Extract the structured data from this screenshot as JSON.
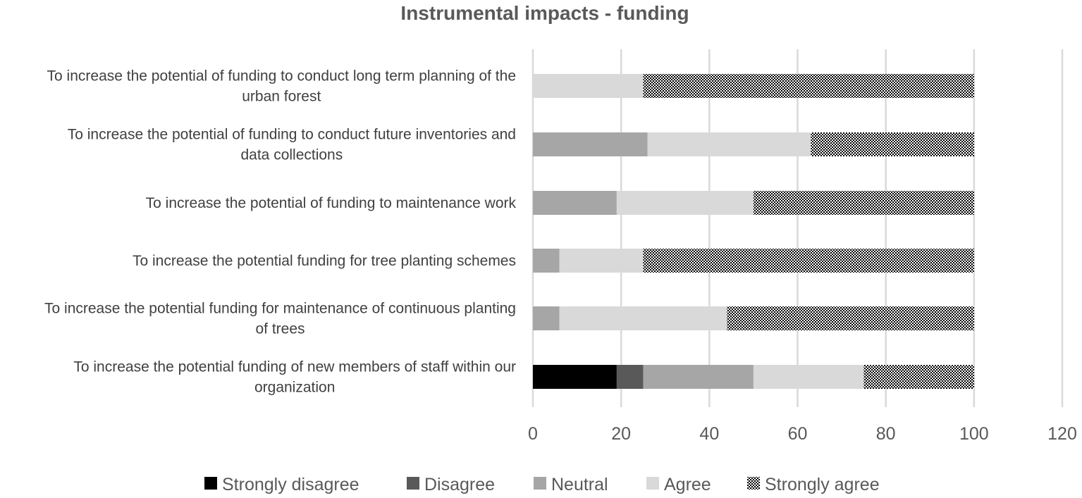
{
  "chart_data": {
    "type": "bar",
    "orientation": "horizontal",
    "stacked": true,
    "title": "Instrumental impacts - funding",
    "xlabel": "",
    "ylabel": "",
    "xlim": [
      0,
      120
    ],
    "x_ticks": [
      "0",
      "20",
      "40",
      "60",
      "80",
      "100",
      "120"
    ],
    "grid": "vertical",
    "legend_position": "bottom",
    "categories": [
      [
        "To increase the potential of funding to conduct long term planning of the",
        "urban forest"
      ],
      [
        "To increase the potential of funding to conduct future inventories and",
        "data collections"
      ],
      [
        "To increase the potential of funding to maintenance work"
      ],
      [
        "To increase the potential funding for tree planting schemes"
      ],
      [
        "To increase the potential funding for maintenance of continuous planting",
        "of trees"
      ],
      [
        "To increase the potential funding of new members of staff within our",
        "organization"
      ]
    ],
    "series": [
      {
        "name": "Strongly disagree",
        "color": "#000000",
        "pattern": "solid",
        "values": [
          0,
          0,
          0,
          0,
          0,
          19
        ]
      },
      {
        "name": "Disagree",
        "color": "#595959",
        "pattern": "solid",
        "values": [
          0,
          0,
          0,
          0,
          0,
          6
        ]
      },
      {
        "name": "Neutral",
        "color": "#a6a6a6",
        "pattern": "solid",
        "values": [
          0,
          26,
          19,
          6,
          6,
          25
        ]
      },
      {
        "name": "Agree",
        "color": "#d9d9d9",
        "pattern": "solid",
        "values": [
          25,
          37,
          31,
          19,
          38,
          25
        ]
      },
      {
        "name": "Strongly agree",
        "color": "#000000",
        "pattern": "dots",
        "values": [
          75,
          37,
          50,
          75,
          56,
          25
        ]
      }
    ],
    "colors": {
      "grid": "#d9d9d9",
      "text": "#595959",
      "category_text": "#404040"
    }
  }
}
